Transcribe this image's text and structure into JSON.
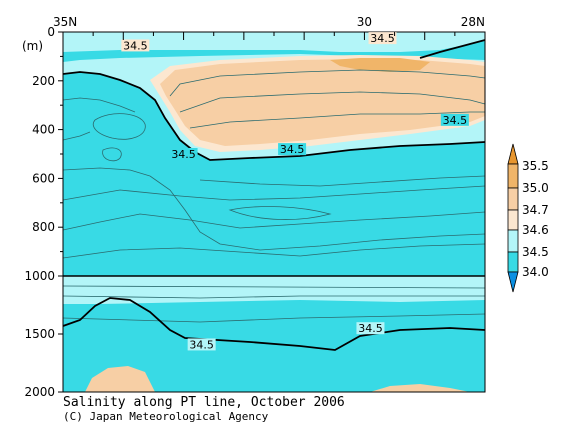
{
  "chart_data": {
    "type": "contour",
    "title": "Salinity along PT line, October 2006",
    "credit": "(C) Japan Meteorological Agency",
    "x_axis": {
      "ticks": [
        {
          "lat": 35,
          "label": "35N"
        },
        {
          "lat": 30,
          "label": "30"
        },
        {
          "lat": 28,
          "label": "28N"
        }
      ],
      "range": [
        35,
        28
      ]
    },
    "y_axis": {
      "unit_label": "(m)",
      "upper_panel": {
        "range": [
          0,
          1000
        ],
        "ticks": [
          "0",
          "200",
          "400",
          "600",
          "800",
          "1000"
        ]
      },
      "lower_panel": {
        "range": [
          1000,
          2000
        ],
        "ticks": [
          "1500",
          "2000"
        ]
      }
    },
    "legend": {
      "levels": [
        "35.5",
        "35.0",
        "34.7",
        "34.6",
        "34.5",
        "34.0"
      ],
      "colors": {
        "gt_35_5": "#e8962e",
        "35_0_35_5": "#f0b569",
        "34_7_35_0": "#f7cfa5",
        "34_6_34_7": "#fce7d0",
        "34_5_34_6": "#b3f5f8",
        "34_0_34_5": "#38dae5",
        "lt_34_0": "#0a8fe2"
      }
    },
    "contour_labels": [
      {
        "value": "34.5",
        "lat": 33.8,
        "depth": 55
      },
      {
        "value": "34.5",
        "lat": 29.7,
        "depth": 25
      },
      {
        "value": "34.5",
        "lat": 28.5,
        "depth": 360
      },
      {
        "value": "34.5",
        "lat": 31.2,
        "depth": 480
      },
      {
        "value": "34.5",
        "lat": 33.0,
        "depth": 500
      },
      {
        "value": "34.5",
        "lat": 29.9,
        "depth": 1450
      },
      {
        "value": "34.5",
        "lat": 32.7,
        "depth": 1590
      }
    ]
  }
}
